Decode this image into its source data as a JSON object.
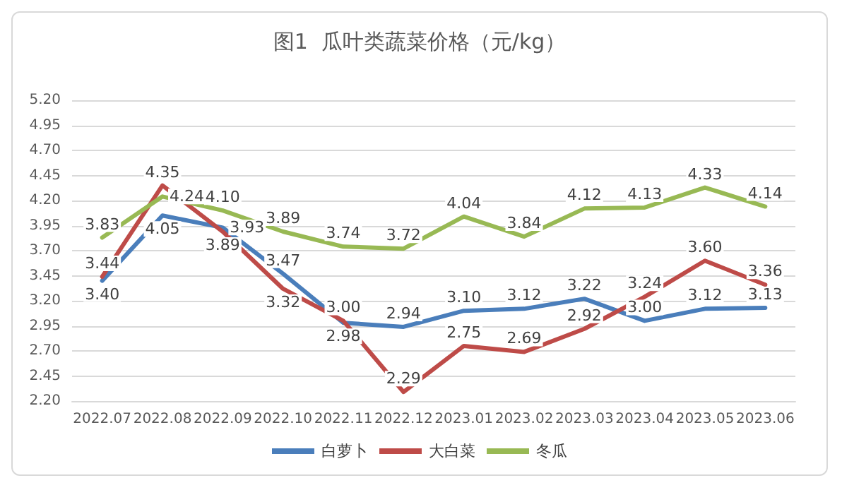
{
  "chart_data": {
    "type": "line",
    "title": "图1  瓜叶类蔬菜价格（元/kg）",
    "categories": [
      "2022.07",
      "2022.08",
      "2022.09",
      "2022.10",
      "2022.11",
      "2022.12",
      "2023.01",
      "2023.02",
      "2023.03",
      "2023.04",
      "2023.05",
      "2023.06"
    ],
    "series": [
      {
        "name": "白萝卜",
        "color": "#4a7ebb",
        "values": [
          3.4,
          4.05,
          3.93,
          3.47,
          2.98,
          2.94,
          3.1,
          3.12,
          3.22,
          3.0,
          3.12,
          3.13
        ],
        "value_labels": [
          "3.40",
          "4.05",
          "3.93",
          "3.47",
          "2.98",
          "2.94",
          "3.10",
          "3.12",
          "3.22",
          "3.00",
          "3.12",
          "3.13"
        ]
      },
      {
        "name": "大白菜",
        "color": "#be4b48",
        "values": [
          3.44,
          4.35,
          3.89,
          3.32,
          3.0,
          2.29,
          2.75,
          2.69,
          2.92,
          3.24,
          3.6,
          3.36
        ],
        "value_labels": [
          "3.44",
          "4.35",
          "3.89",
          "3.32",
          "3.00",
          "2.29",
          "2.75",
          "2.69",
          "2.92",
          "3.24",
          "3.60",
          "3.36"
        ]
      },
      {
        "name": "冬瓜",
        "color": "#98b954",
        "values": [
          3.83,
          4.24,
          4.1,
          3.89,
          3.74,
          3.72,
          4.04,
          3.84,
          4.12,
          4.13,
          4.33,
          4.14
        ],
        "value_labels": [
          "3.83",
          "4.24",
          "4.10",
          "3.89",
          "3.74",
          "3.72",
          "4.04",
          "3.84",
          "4.12",
          "4.13",
          "4.33",
          "4.14"
        ]
      }
    ],
    "ylim": [
      2.2,
      5.2
    ],
    "yticks": [
      {
        "value": 2.2,
        "label": "2.20"
      },
      {
        "value": 2.45,
        "label": "2.45"
      },
      {
        "value": 2.7,
        "label": "2.70"
      },
      {
        "value": 2.95,
        "label": "2.95"
      },
      {
        "value": 3.2,
        "label": "3.20"
      },
      {
        "value": 3.45,
        "label": "3.45"
      },
      {
        "value": 3.7,
        "label": "3.70"
      },
      {
        "value": 3.95,
        "label": "3.95"
      },
      {
        "value": 4.2,
        "label": "4.20"
      },
      {
        "value": 4.45,
        "label": "4.45"
      },
      {
        "value": 4.7,
        "label": "4.70"
      },
      {
        "value": 4.95,
        "label": "4.95"
      },
      {
        "value": 5.2,
        "label": "5.20"
      }
    ],
    "grid": "y",
    "legend": "bottom",
    "marker": "none",
    "line_style": "solid"
  }
}
